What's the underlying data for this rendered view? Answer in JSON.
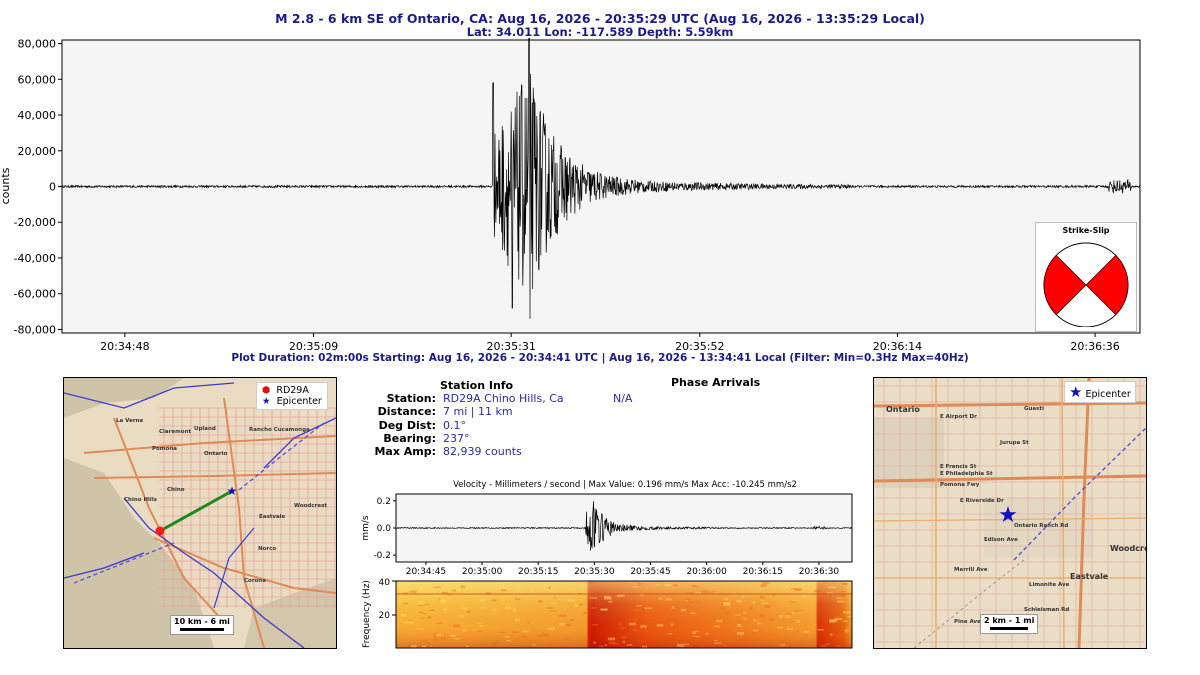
{
  "header": {
    "title": "M 2.8 - 6 km SE of Ontario, CA:  Aug 16, 2026 - 20:35:29 UTC (Aug 16, 2026 - 13:35:29 Local)",
    "subtitle": "Lat: 34.011 Lon: -117.589 Depth: 5.59km"
  },
  "main_plot": {
    "ylabel": "counts",
    "yticks": [
      "80,000",
      "60,000",
      "40,000",
      "20,000",
      "0",
      "-20,000",
      "-40,000",
      "-60,000",
      "-80,000"
    ],
    "xticks": [
      "20:34:48",
      "20:35:09",
      "20:35:31",
      "20:35:52",
      "20:36:14",
      "20:36:36"
    ],
    "footer": "Plot Duration: 02m:00s  Starting: Aug 16, 2026 - 20:34:41 UTC | Aug 16, 2026 - 13:34:41 Local   (Filter:  Min=0.3Hz  Max=40Hz)"
  },
  "mechanism": {
    "label": "Strike-Slip",
    "fill_color": "#ff0000"
  },
  "left_map": {
    "legend_station": "RD29A",
    "legend_epicenter": "Epicenter",
    "scale_label": "10 km - 6 mi",
    "places": [
      "La Verne",
      "Claremont",
      "Upland",
      "Rancho Cucamonga",
      "Pomona",
      "Ontario",
      "Chino Hills",
      "Chino",
      "Eastvale",
      "Norco",
      "Corona",
      "Woodcrest"
    ]
  },
  "station_info": {
    "heading": "Station Info",
    "rows": [
      {
        "label": "Station:",
        "value": "RD29A Chino Hills, Ca"
      },
      {
        "label": "Distance:",
        "value": "7 mi | 11 km"
      },
      {
        "label": "Deg Dist:",
        "value": "0.1°"
      },
      {
        "label": "Bearing:",
        "value": "237°"
      },
      {
        "label": "Max Amp:",
        "value": "82,939 counts"
      }
    ]
  },
  "phase_arrivals": {
    "heading": "Phase Arrivals",
    "value": "N/A"
  },
  "velocity_plot": {
    "title": "Velocity - Millimeters / second | Max Value: 0.196 mm/s Max Acc: -10.245 mm/s2",
    "ylabel": "mm/s",
    "yticks": [
      "0.2",
      "0.0",
      "-0.2"
    ],
    "xticks": [
      "20:34:45",
      "20:35:00",
      "20:35:15",
      "20:35:30",
      "20:35:45",
      "20:36:00",
      "20:36:15",
      "20:36:30"
    ]
  },
  "spectrogram": {
    "ylabel": "Frequency (Hz)",
    "yticks": [
      "40",
      "20"
    ]
  },
  "right_map": {
    "legend_epicenter": "Epicenter",
    "scale_label": "2 km - 1 mi",
    "places": [
      "Ontario",
      "E Airport Dr",
      "Guasti",
      "Jurupa St",
      "E Francis St",
      "E Philadelphia St",
      "Pomona Fwy",
      "E Riverside Dr",
      "Ontario Ranch Rd",
      "Edison Ave",
      "Merrill Ave",
      "Limonite Ave",
      "Eastvale",
      "Pine Ave",
      "Woodcrest",
      "Schleisman Rd"
    ]
  },
  "chart_data": [
    {
      "type": "line",
      "title": "M 2.8 - 6 km SE of Ontario, CA:  Aug 16, 2026 - 20:35:29 UTC (Aug 16, 2026 - 13:35:29 Local)",
      "xlabel": "",
      "ylabel": "counts",
      "xlim": [
        0,
        120
      ],
      "ylim": [
        -82000,
        82000
      ],
      "yticks": [
        80000,
        60000,
        40000,
        20000,
        0,
        -20000,
        -40000,
        -60000,
        -80000
      ],
      "xtick_seconds": [
        7,
        28,
        50,
        71,
        93,
        115
      ],
      "xtick_labels": [
        "20:34:48",
        "20:35:09",
        "20:35:31",
        "20:35:52",
        "20:36:14",
        "20:36:36"
      ],
      "events": [
        {
          "start": 48,
          "peak": 52,
          "end": 65,
          "max": 82939,
          "min": -74000
        },
        {
          "start": 116.5,
          "end": 119,
          "max": 5000,
          "min": -3500
        }
      ]
    },
    {
      "type": "line",
      "title": "Velocity - Millimeters / second | Max Value: 0.196 mm/s Max Acc: -10.245 mm/s2",
      "xlabel": "",
      "ylabel": "mm/s",
      "ylim": [
        -0.25,
        0.25
      ],
      "yticks": [
        0.2,
        0.0,
        -0.2
      ],
      "xtick_labels": [
        "20:34:45",
        "20:35:00",
        "20:35:15",
        "20:35:30",
        "20:35:45",
        "20:36:00",
        "20:36:15",
        "20:36:30"
      ],
      "max_value": 0.196
    },
    {
      "type": "heatmap",
      "ylabel": "Frequency (Hz)",
      "ylim": [
        0,
        40
      ],
      "yticks": [
        40,
        20
      ]
    }
  ]
}
